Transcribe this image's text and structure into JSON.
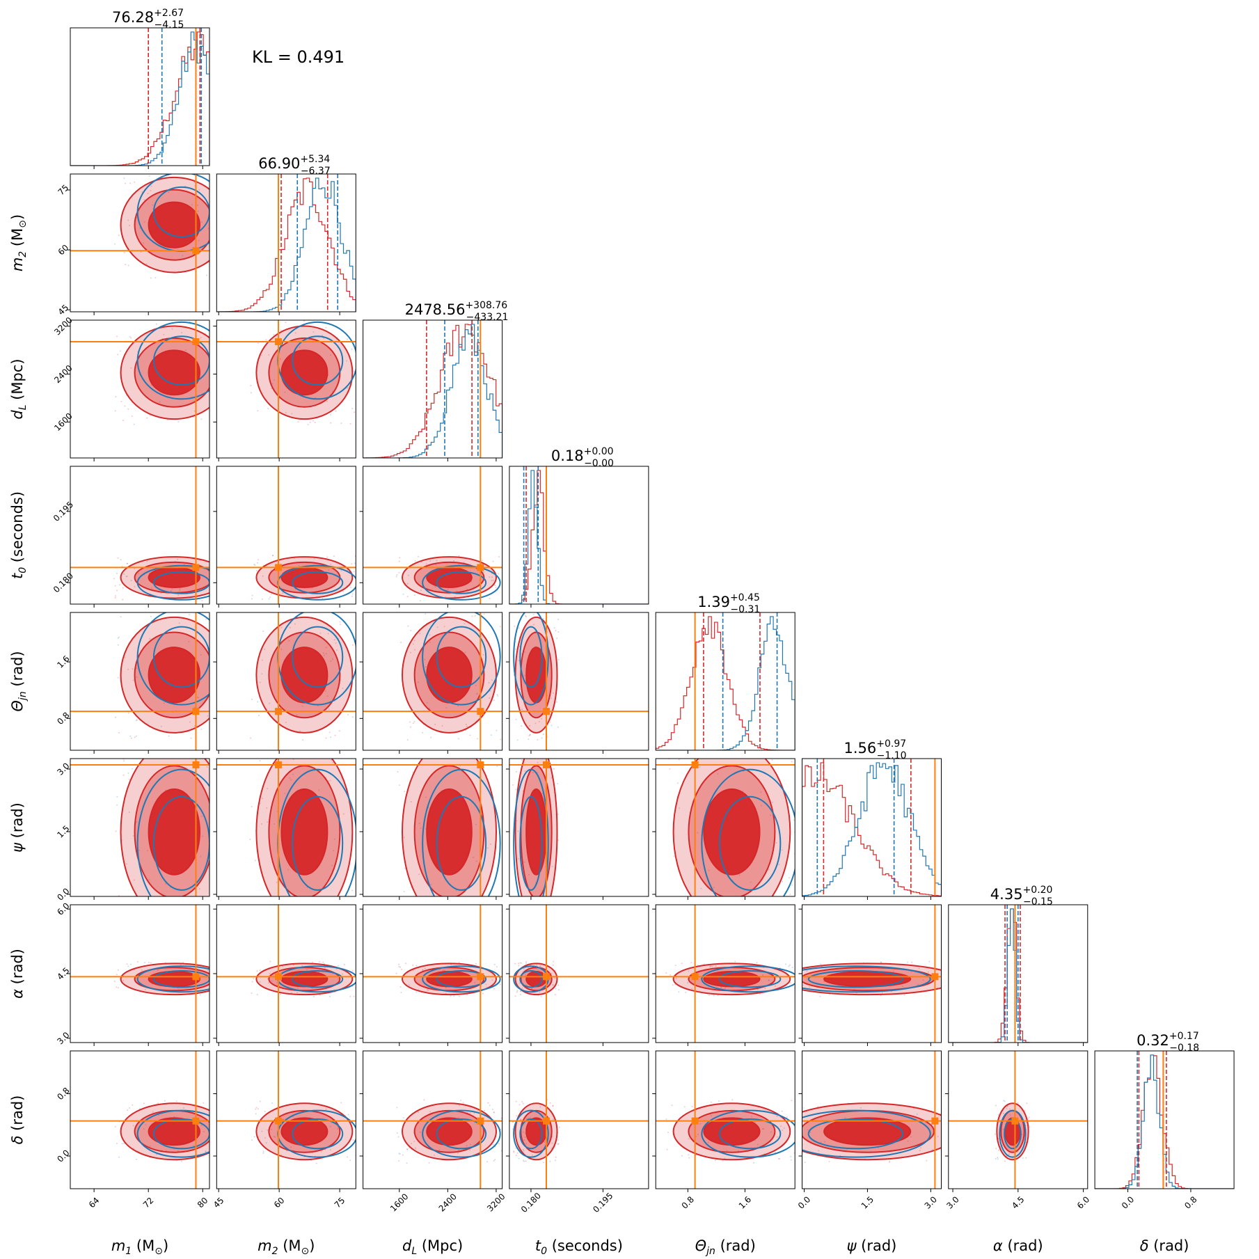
{
  "chart_data": {
    "type": "corner",
    "annotation": "KL = 0.491",
    "truth_color": "#ff7f0e",
    "series": [
      {
        "name": "",
        "color": "#d62728"
      },
      {
        "name": "",
        "color": "#1f77b4"
      }
    ],
    "params": [
      {
        "key": "m1",
        "base": "m",
        "sub": "1",
        "unit": "(M",
        "unit_sub": "⊙",
        "unit_end": ")",
        "range": [
          60.5,
          81
        ],
        "ticks": [
          64,
          72,
          80
        ],
        "tick_labels": [
          "64",
          "72",
          "80"
        ],
        "truth": 79.0,
        "median": 76.28,
        "plus": "+2.67",
        "minus": "−4.15",
        "title_main": "76.28",
        "red_q": [
          72.0,
          79.6
        ],
        "blue_q": [
          74.0,
          79.8
        ],
        "red_peak": 79.5,
        "blue_peak": 79.0,
        "red_sd": 3.5,
        "blue_sd": 2.5
      },
      {
        "key": "m2",
        "base": "m",
        "sub": "2",
        "unit": "(M",
        "unit_sub": "⊙",
        "unit_end": ")",
        "range": [
          44.5,
          79
        ],
        "ticks": [
          45,
          60,
          75
        ],
        "tick_labels": [
          "45",
          "60",
          "75"
        ],
        "truth": 59.8,
        "median": 66.9,
        "plus": "+5.34",
        "minus": "−6.37",
        "title_main": "66.90",
        "red_q": [
          60.5,
          72.0
        ],
        "blue_q": [
          64.5,
          74.5
        ],
        "red_peak": 67.0,
        "blue_peak": 71.0,
        "red_sd": 5.5,
        "blue_sd": 4.5
      },
      {
        "key": "dL",
        "base": "d",
        "sub": "L",
        "unit": "(Mpc)",
        "unit_sub": "",
        "unit_end": "",
        "range": [
          1000,
          3300
        ],
        "ticks": [
          1600,
          2400,
          3200
        ],
        "tick_labels": [
          "1600",
          "2400",
          "3200"
        ],
        "truth": 2940,
        "median": 2478.56,
        "plus": "+308.76",
        "minus": "−433.21",
        "title_main": "2478.56",
        "red_q": [
          2050,
          2800
        ],
        "blue_q": [
          2350,
          2900
        ],
        "red_peak": 2700,
        "blue_peak": 2750,
        "red_sd": 420,
        "blue_sd": 300
      },
      {
        "key": "t0",
        "base": "t",
        "sub": "0",
        "unit": "(seconds)",
        "unit_sub": "",
        "unit_end": "",
        "range": [
          0.1755,
          0.2045
        ],
        "ticks": [
          0.18,
          0.195
        ],
        "tick_labels": [
          "0.180",
          "0.195"
        ],
        "truth": 0.1832,
        "median": 0.18,
        "plus": "+0.00",
        "minus": "−0.00",
        "title_main": "0.18",
        "red_q": [
          0.179,
          0.1832
        ],
        "blue_q": [
          0.1785,
          0.1815
        ],
        "red_peak": 0.1815,
        "blue_peak": 0.1805,
        "red_sd": 0.0012,
        "blue_sd": 0.0009
      },
      {
        "key": "theta",
        "base": "Θ",
        "sub": "jn",
        "unit": "(rad)",
        "unit_sub": "",
        "unit_end": "",
        "range": [
          0.35,
          2.3
        ],
        "ticks": [
          0.8,
          1.6
        ],
        "tick_labels": [
          "0.8",
          "1.6"
        ],
        "truth": 0.9,
        "median": 1.39,
        "plus": "+0.45",
        "minus": "−0.31",
        "title_main": "1.39",
        "red_q": [
          1.02,
          1.81
        ],
        "blue_q": [
          1.29,
          2.05
        ],
        "red_peak": 1.1,
        "blue_peak": 2.0,
        "red_sd": 0.25,
        "blue_sd": 0.2
      },
      {
        "key": "psi",
        "base": "ψ",
        "sub": "",
        "unit": "(rad)",
        "unit_sub": "",
        "unit_end": "",
        "range": [
          -0.05,
          3.25
        ],
        "ticks": [
          0.0,
          1.5,
          3.0
        ],
        "tick_labels": [
          "0.0",
          "1.5",
          "3.0"
        ],
        "truth": 3.1,
        "median": 1.56,
        "plus": "+0.97",
        "minus": "−1.10",
        "title_main": "1.56",
        "red_q": [
          0.46,
          2.53
        ],
        "blue_q": [
          0.31,
          2.13
        ],
        "red_peak": 0.3,
        "blue_peak": 1.9,
        "red_sd": 0.9,
        "blue_sd": 0.6
      },
      {
        "key": "alpha",
        "base": "α",
        "sub": "",
        "unit": "(rad)",
        "unit_sub": "",
        "unit_end": "",
        "range": [
          2.9,
          6.1
        ],
        "ticks": [
          3.0,
          4.5,
          6.0
        ],
        "tick_labels": [
          "3.0",
          "4.5",
          "6.0"
        ],
        "truth": 4.43,
        "median": 4.35,
        "plus": "+0.20",
        "minus": "−0.15",
        "title_main": "4.35",
        "red_q": [
          4.2,
          4.55
        ],
        "blue_q": [
          4.25,
          4.5
        ],
        "red_peak": 4.35,
        "blue_peak": 4.35,
        "red_sd": 0.1,
        "blue_sd": 0.08
      },
      {
        "key": "delta",
        "base": "δ",
        "sub": "",
        "unit": "(rad)",
        "unit_sub": "",
        "unit_end": "",
        "range": [
          -0.42,
          1.35
        ],
        "ticks": [
          0.0,
          0.8
        ],
        "tick_labels": [
          "0.0",
          "0.8"
        ],
        "truth": 0.45,
        "median": 0.32,
        "plus": "+0.17",
        "minus": "−0.18",
        "title_main": "0.32",
        "red_q": [
          0.14,
          0.49
        ],
        "blue_q": [
          0.12,
          0.45
        ],
        "red_peak": 0.32,
        "blue_peak": 0.3,
        "red_sd": 0.12,
        "blue_sd": 0.1
      }
    ],
    "grid": false
  }
}
